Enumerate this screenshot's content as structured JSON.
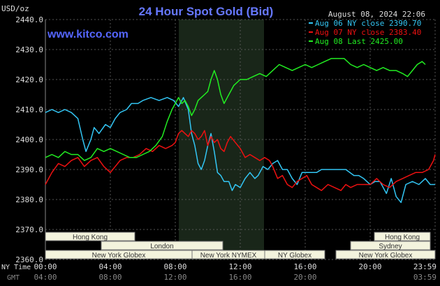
{
  "header": {
    "title": "24 Hour Spot Gold (Bid)",
    "datetime": "August 08, 2024 22:06",
    "unit_label": "USD/oz",
    "watermark": "www.kitco.com"
  },
  "legend": [
    {
      "label": "Aug 06 NY close 2390.70",
      "color": "#33c6f4"
    },
    {
      "label": "Aug 07 NY close 2383.40",
      "color": "#ee1111"
    },
    {
      "label": "Aug 08 Last 2425.00",
      "color": "#22ee22"
    }
  ],
  "axes": {
    "y_ticks": [
      "2440.0",
      "2430.0",
      "2420.0",
      "2410.0",
      "2400.0",
      "2390.0",
      "2380.0",
      "2370.0",
      "2360.0"
    ],
    "x_ticks_ny": [
      "00:00",
      "04:00",
      "08:00",
      "12:00",
      "16:00",
      "20:00",
      "23:59"
    ],
    "x_ticks_gmt": [
      "04:00",
      "08:00",
      "12:00",
      "16:00",
      "20:00",
      "03:59"
    ],
    "ny_label": "NY Time",
    "gmt_label": "GMT"
  },
  "sessions": [
    {
      "name": "Hong Kong",
      "row": 0
    },
    {
      "name": "London",
      "row": 1
    },
    {
      "name": "New York Globex",
      "row": 2
    },
    {
      "name": "New York NYMEX",
      "row": 2
    },
    {
      "name": "NY Globex",
      "row": 2
    },
    {
      "name": "Hong Kong",
      "row": 0
    },
    {
      "name": "Sydney",
      "row": 1
    },
    {
      "name": "New York Globex",
      "row": 2
    }
  ],
  "chart_data": {
    "type": "line",
    "ylim": [
      2360,
      2440
    ],
    "xlim_hours": [
      0,
      24
    ],
    "series": [
      {
        "name": "Aug 06 NY close 2390.70",
        "color": "#33c6f4",
        "points": [
          [
            0,
            2409
          ],
          [
            0.4,
            2410
          ],
          [
            0.8,
            2409
          ],
          [
            1.2,
            2410
          ],
          [
            1.6,
            2409
          ],
          [
            2.0,
            2407
          ],
          [
            2.3,
            2400
          ],
          [
            2.5,
            2396
          ],
          [
            2.8,
            2400
          ],
          [
            3.0,
            2404
          ],
          [
            3.3,
            2402
          ],
          [
            3.7,
            2405
          ],
          [
            4.0,
            2404
          ],
          [
            4.3,
            2407
          ],
          [
            4.6,
            2409
          ],
          [
            5.0,
            2410
          ],
          [
            5.3,
            2412
          ],
          [
            5.7,
            2412
          ],
          [
            6.0,
            2413
          ],
          [
            6.5,
            2414
          ],
          [
            7.0,
            2413
          ],
          [
            7.5,
            2414
          ],
          [
            7.9,
            2413
          ],
          [
            8.2,
            2411
          ],
          [
            8.5,
            2414
          ],
          [
            8.8,
            2410
          ],
          [
            9.0,
            2402
          ],
          [
            9.2,
            2398
          ],
          [
            9.4,
            2392
          ],
          [
            9.6,
            2390
          ],
          [
            9.8,
            2393
          ],
          [
            10.0,
            2398
          ],
          [
            10.2,
            2402
          ],
          [
            10.4,
            2396
          ],
          [
            10.6,
            2389
          ],
          [
            10.8,
            2388
          ],
          [
            11.0,
            2386
          ],
          [
            11.3,
            2386
          ],
          [
            11.5,
            2383
          ],
          [
            11.7,
            2385
          ],
          [
            12.0,
            2384
          ],
          [
            12.3,
            2387
          ],
          [
            12.6,
            2389
          ],
          [
            12.9,
            2387
          ],
          [
            13.1,
            2388
          ],
          [
            13.4,
            2391
          ],
          [
            13.7,
            2390
          ],
          [
            14.0,
            2392
          ],
          [
            14.3,
            2393
          ],
          [
            14.6,
            2390
          ],
          [
            14.9,
            2390
          ],
          [
            15.2,
            2387
          ],
          [
            15.5,
            2385
          ],
          [
            15.8,
            2389
          ],
          [
            16.1,
            2389
          ],
          [
            16.4,
            2389
          ],
          [
            16.7,
            2389
          ],
          [
            17.0,
            2390
          ],
          [
            17.5,
            2390
          ],
          [
            18.0,
            2390
          ],
          [
            18.5,
            2390
          ],
          [
            19.0,
            2388
          ],
          [
            19.3,
            2388
          ],
          [
            19.6,
            2387
          ],
          [
            20.0,
            2385
          ],
          [
            20.3,
            2386
          ],
          [
            20.6,
            2386
          ],
          [
            21.0,
            2382
          ],
          [
            21.3,
            2387
          ],
          [
            21.6,
            2381
          ],
          [
            21.9,
            2379
          ],
          [
            22.2,
            2385
          ],
          [
            22.6,
            2386
          ],
          [
            23.0,
            2385
          ],
          [
            23.4,
            2387
          ],
          [
            23.7,
            2385
          ],
          [
            24.0,
            2385
          ]
        ]
      },
      {
        "name": "Aug 07 NY close 2383.40",
        "color": "#ee1111",
        "points": [
          [
            0,
            2385
          ],
          [
            0.4,
            2389
          ],
          [
            0.8,
            2392
          ],
          [
            1.2,
            2391
          ],
          [
            1.6,
            2393
          ],
          [
            2.0,
            2394
          ],
          [
            2.4,
            2391
          ],
          [
            2.8,
            2393
          ],
          [
            3.2,
            2394
          ],
          [
            3.6,
            2391
          ],
          [
            4.0,
            2389
          ],
          [
            4.3,
            2391
          ],
          [
            4.6,
            2393
          ],
          [
            5.0,
            2394
          ],
          [
            5.4,
            2394
          ],
          [
            5.8,
            2395
          ],
          [
            6.2,
            2397
          ],
          [
            6.6,
            2396
          ],
          [
            7.0,
            2398
          ],
          [
            7.4,
            2397
          ],
          [
            7.8,
            2398
          ],
          [
            8.0,
            2399
          ],
          [
            8.2,
            2402
          ],
          [
            8.4,
            2403
          ],
          [
            8.6,
            2402
          ],
          [
            8.8,
            2401
          ],
          [
            9.0,
            2403
          ],
          [
            9.2,
            2402
          ],
          [
            9.4,
            2400
          ],
          [
            9.6,
            2401
          ],
          [
            9.8,
            2403
          ],
          [
            10.0,
            2398
          ],
          [
            10.2,
            2401
          ],
          [
            10.4,
            2399
          ],
          [
            10.6,
            2400
          ],
          [
            10.8,
            2397
          ],
          [
            11.0,
            2396
          ],
          [
            11.2,
            2399
          ],
          [
            11.4,
            2401
          ],
          [
            11.7,
            2399
          ],
          [
            12.0,
            2397
          ],
          [
            12.3,
            2394
          ],
          [
            12.6,
            2395
          ],
          [
            12.9,
            2394
          ],
          [
            13.2,
            2393
          ],
          [
            13.5,
            2394
          ],
          [
            13.8,
            2393
          ],
          [
            14.0,
            2391
          ],
          [
            14.3,
            2387
          ],
          [
            14.6,
            2388
          ],
          [
            14.9,
            2385
          ],
          [
            15.2,
            2384
          ],
          [
            15.5,
            2386
          ],
          [
            15.8,
            2387
          ],
          [
            16.1,
            2388
          ],
          [
            16.4,
            2385
          ],
          [
            16.7,
            2384
          ],
          [
            17.0,
            2383
          ],
          [
            17.4,
            2385
          ],
          [
            17.8,
            2384
          ],
          [
            18.2,
            2383
          ],
          [
            18.5,
            2385
          ],
          [
            18.8,
            2384
          ],
          [
            19.2,
            2385
          ],
          [
            19.6,
            2385
          ],
          [
            20.0,
            2385
          ],
          [
            20.4,
            2387
          ],
          [
            20.8,
            2385
          ],
          [
            21.2,
            2384
          ],
          [
            21.6,
            2386
          ],
          [
            22.0,
            2387
          ],
          [
            22.4,
            2388
          ],
          [
            22.8,
            2389
          ],
          [
            23.2,
            2389
          ],
          [
            23.6,
            2390
          ],
          [
            23.9,
            2393
          ],
          [
            24.0,
            2395
          ]
        ]
      },
      {
        "name": "Aug 08 Last 2425.00",
        "color": "#22ee22",
        "points": [
          [
            0,
            2394
          ],
          [
            0.4,
            2395
          ],
          [
            0.8,
            2394
          ],
          [
            1.2,
            2396
          ],
          [
            1.6,
            2395
          ],
          [
            2.0,
            2395
          ],
          [
            2.4,
            2393
          ],
          [
            2.8,
            2394
          ],
          [
            3.2,
            2397
          ],
          [
            3.6,
            2396
          ],
          [
            4.0,
            2397
          ],
          [
            4.4,
            2396
          ],
          [
            4.8,
            2395
          ],
          [
            5.2,
            2394
          ],
          [
            5.6,
            2394
          ],
          [
            6.0,
            2395
          ],
          [
            6.4,
            2396
          ],
          [
            6.8,
            2398
          ],
          [
            7.2,
            2401
          ],
          [
            7.5,
            2406
          ],
          [
            7.8,
            2410
          ],
          [
            8.0,
            2412
          ],
          [
            8.2,
            2414
          ],
          [
            8.4,
            2412
          ],
          [
            8.6,
            2413
          ],
          [
            8.8,
            2411
          ],
          [
            9.0,
            2408
          ],
          [
            9.2,
            2410
          ],
          [
            9.4,
            2413
          ],
          [
            9.6,
            2414
          ],
          [
            9.8,
            2415
          ],
          [
            10.0,
            2416
          ],
          [
            10.2,
            2420
          ],
          [
            10.4,
            2423
          ],
          [
            10.6,
            2420
          ],
          [
            10.8,
            2415
          ],
          [
            11.0,
            2412
          ],
          [
            11.3,
            2415
          ],
          [
            11.6,
            2418
          ],
          [
            12.0,
            2420
          ],
          [
            12.4,
            2420
          ],
          [
            12.8,
            2421
          ],
          [
            13.2,
            2422
          ],
          [
            13.6,
            2421
          ],
          [
            14.0,
            2423
          ],
          [
            14.4,
            2425
          ],
          [
            14.8,
            2424
          ],
          [
            15.2,
            2423
          ],
          [
            15.6,
            2424
          ],
          [
            16.0,
            2425
          ],
          [
            16.4,
            2424
          ],
          [
            16.8,
            2425
          ],
          [
            17.2,
            2426
          ],
          [
            17.6,
            2427
          ],
          [
            18.0,
            2427
          ],
          [
            18.4,
            2427
          ],
          [
            18.8,
            2425
          ],
          [
            19.2,
            2424
          ],
          [
            19.6,
            2425
          ],
          [
            20.0,
            2424
          ],
          [
            20.4,
            2423
          ],
          [
            20.8,
            2424
          ],
          [
            21.2,
            2423
          ],
          [
            21.6,
            2423
          ],
          [
            22.0,
            2422
          ],
          [
            22.3,
            2421
          ],
          [
            22.6,
            2423
          ],
          [
            22.9,
            2425
          ],
          [
            23.2,
            2426
          ],
          [
            23.4,
            2425
          ]
        ]
      }
    ]
  }
}
